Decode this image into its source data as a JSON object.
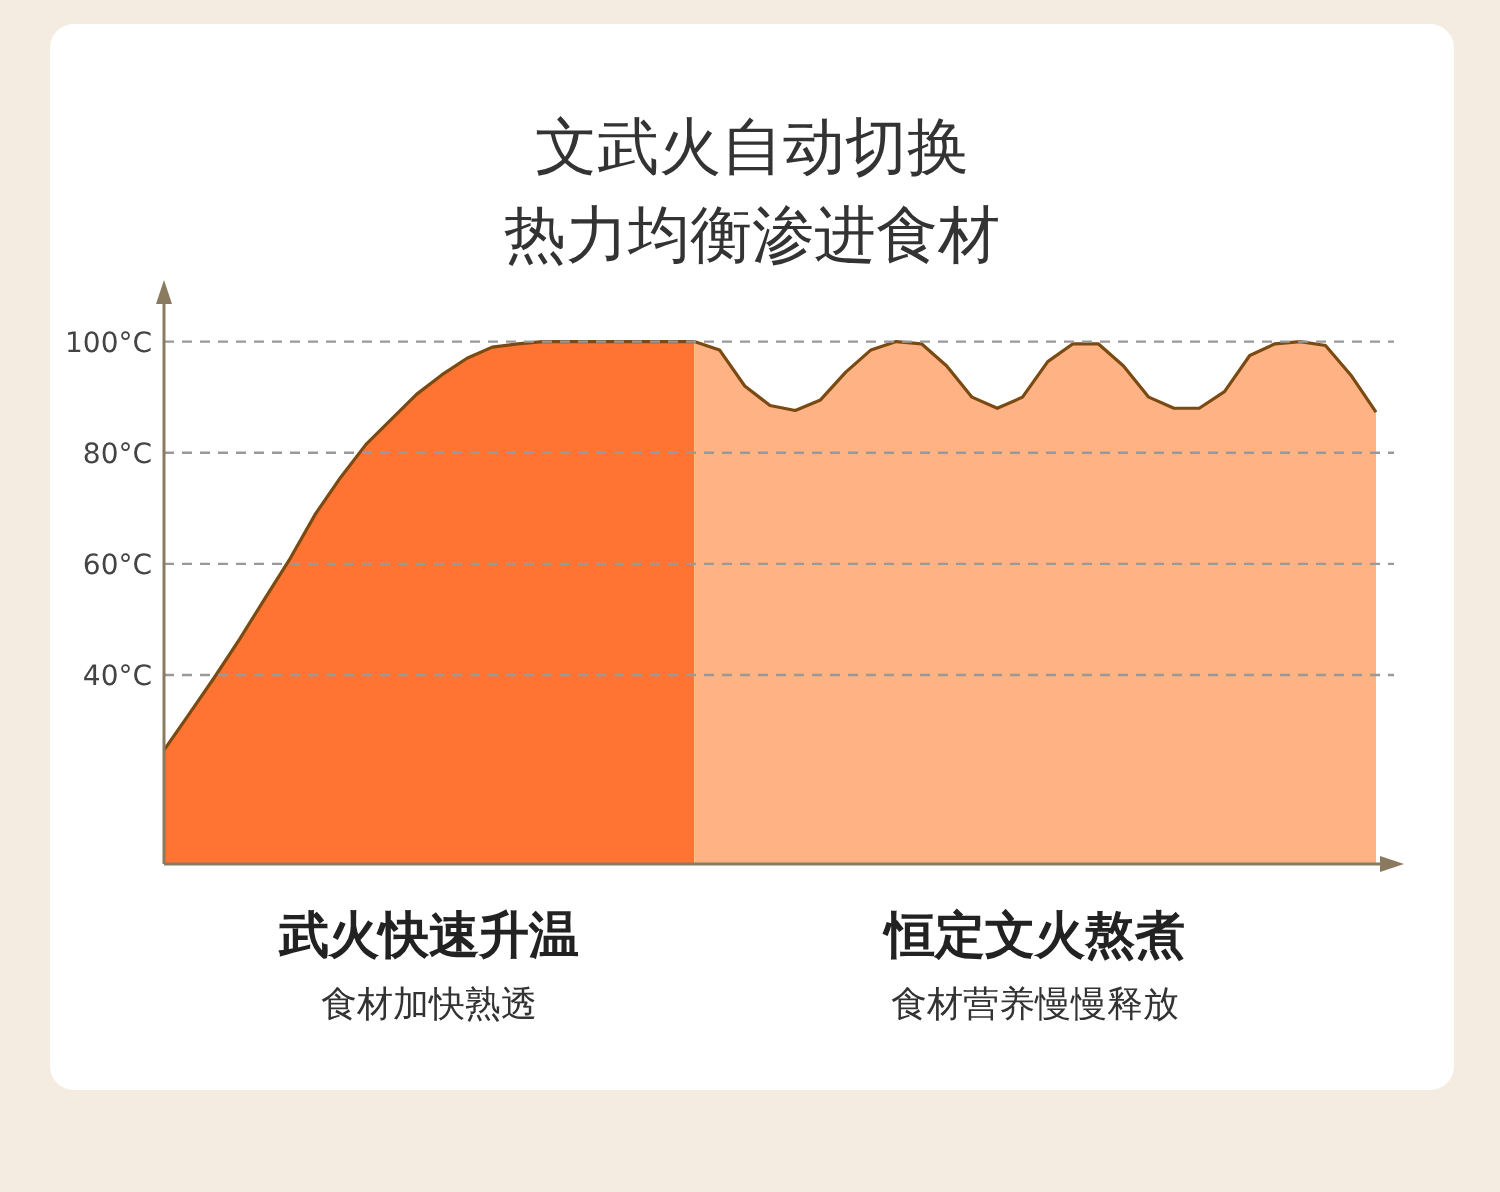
{
  "chart_data": {
    "type": "area",
    "title": "文武火自动切换",
    "subtitle": "热力均衡渗进食材",
    "categories": [
      null,
      null,
      null,
      null,
      null,
      null,
      null,
      null,
      null,
      null,
      null,
      null,
      null,
      null,
      null,
      null,
      null,
      null,
      null,
      null,
      null,
      null,
      null,
      null,
      null,
      null,
      null,
      null,
      null,
      null,
      null,
      null,
      null,
      null,
      null,
      null,
      null,
      null,
      null,
      null,
      null,
      null,
      null,
      null,
      null,
      null,
      null,
      null,
      null
    ],
    "series": [
      {
        "color": "#ff7433",
        "values": [
          26.5,
          33,
          39.6,
          46.5,
          53.8,
          61,
          69,
          75.6,
          81.5,
          86,
          90.5,
          94,
          97,
          99,
          99.6,
          100,
          100,
          100,
          100,
          100,
          100,
          100,
          null,
          null,
          null,
          null,
          null,
          null,
          null,
          null,
          null,
          null,
          null,
          null,
          null,
          null,
          null,
          null,
          null,
          null,
          null,
          null,
          null,
          null,
          null,
          null,
          null,
          null,
          null
        ]
      },
      {
        "color": "#ffb385",
        "values": [
          null,
          null,
          null,
          null,
          null,
          null,
          null,
          null,
          null,
          null,
          null,
          null,
          null,
          null,
          null,
          null,
          null,
          null,
          null,
          null,
          null,
          100,
          98.5,
          92,
          88.5,
          87.6,
          89.5,
          94.5,
          98.5,
          100,
          99.6,
          95.6,
          90,
          88,
          90,
          96.4,
          99.6,
          99.6,
          95.6,
          90,
          88,
          88,
          91,
          97.5,
          99.6,
          100,
          99.3,
          94,
          87.3
        ]
      }
    ],
    "ylim": [
      6,
      110
    ],
    "yticks": [
      {
        "value": 40,
        "label": "40°C"
      },
      {
        "value": 60,
        "label": "60°C"
      },
      {
        "value": 80,
        "label": "80°C"
      },
      {
        "value": 100,
        "label": "100°C"
      }
    ],
    "grid": "y",
    "tick_labels": "y",
    "annotations": [
      "武火快速升温",
      "食材加快熟透",
      "恒定文火熬煮",
      "食材营养慢慢释放"
    ]
  }
}
